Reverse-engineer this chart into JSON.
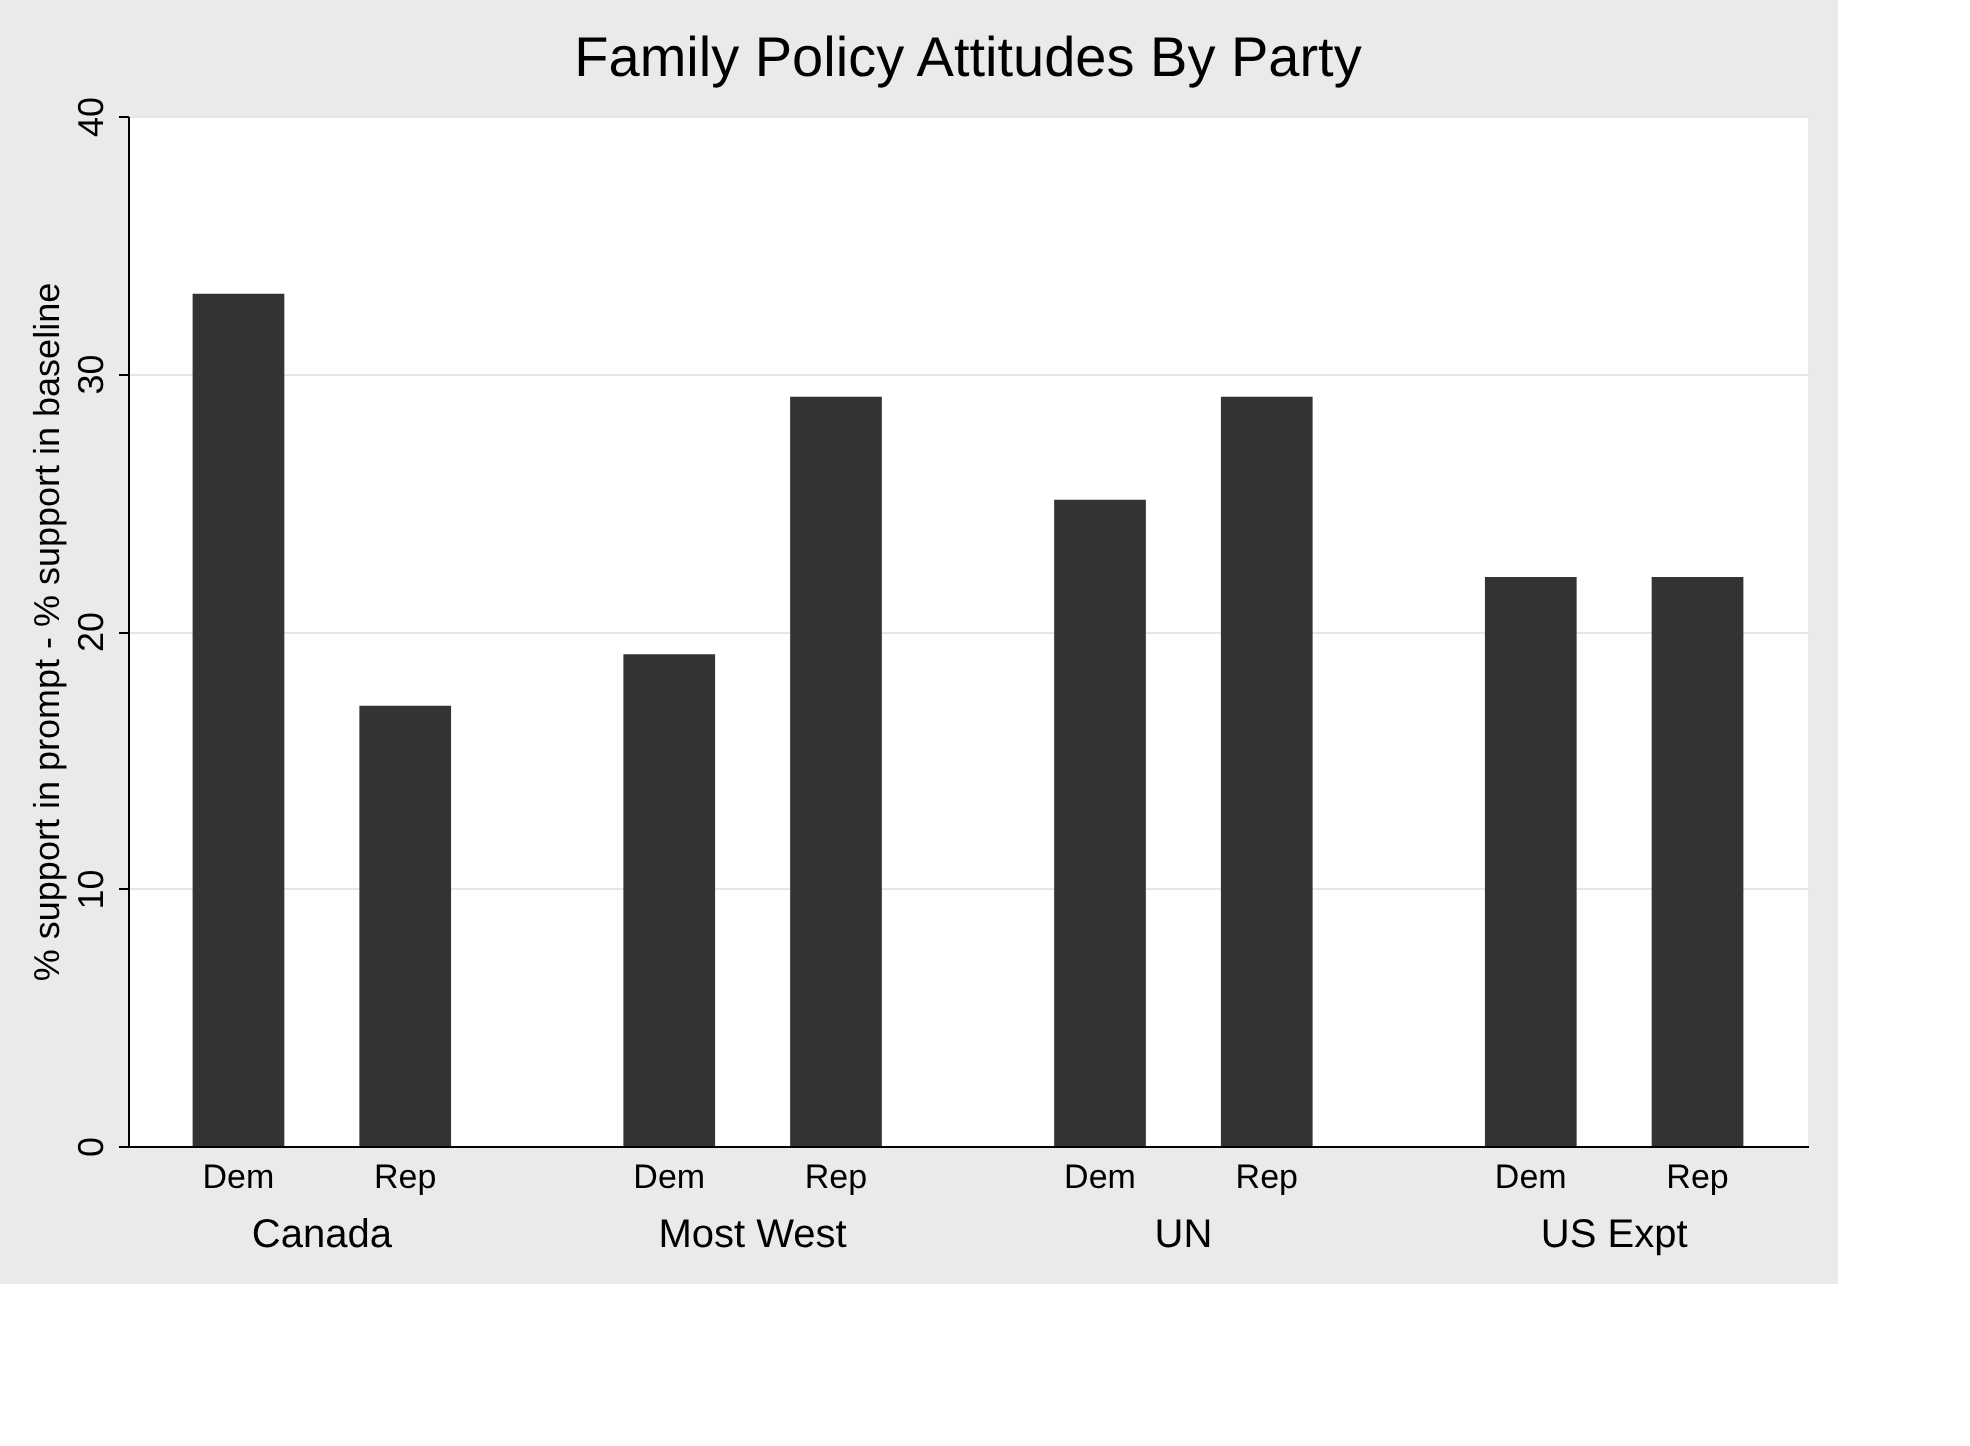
{
  "chart_data": {
    "type": "bar",
    "title": "Family Policy Attitudes By Party",
    "ylabel": "% support in prompt - % support in baseline",
    "categories": [
      "Canada",
      "Most West",
      "UN",
      "US Expt"
    ],
    "series": [
      {
        "name": "Dem",
        "color": "#333333",
        "values": [
          33.1,
          19.1,
          25.1,
          22.1
        ]
      },
      {
        "name": "Rep",
        "color": "#333333",
        "values": [
          17.1,
          29.1,
          29.1,
          22.1
        ]
      }
    ],
    "ylim": [
      0,
      40
    ],
    "yticks": [
      0,
      10,
      20,
      30,
      40
    ],
    "grid": "y"
  }
}
